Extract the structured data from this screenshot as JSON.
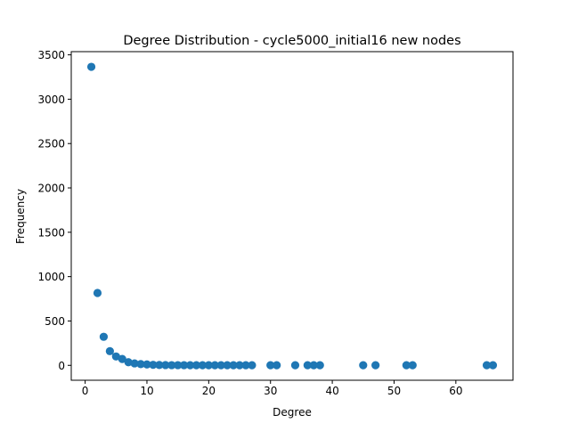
{
  "chart_data": {
    "type": "scatter",
    "title": "Degree Distribution - cycle5000_initial16 new nodes",
    "xlabel": "Degree",
    "ylabel": "Frequency",
    "xlim": [
      -2.25,
      69.25
    ],
    "ylim": [
      -168,
      3536
    ],
    "xticks": [
      0,
      10,
      20,
      30,
      40,
      50,
      60
    ],
    "xtick_labels": [
      "0",
      "10",
      "20",
      "30",
      "40",
      "50",
      "60"
    ],
    "yticks": [
      0,
      500,
      1000,
      1500,
      2000,
      2500,
      3000,
      3500
    ],
    "ytick_labels": [
      "0",
      "500",
      "1000",
      "1500",
      "2000",
      "2500",
      "3000",
      "3500"
    ],
    "grid": false,
    "marker_color": "#1f77b4",
    "points": [
      {
        "x": 1,
        "y": 3365
      },
      {
        "x": 2,
        "y": 816
      },
      {
        "x": 3,
        "y": 322
      },
      {
        "x": 4,
        "y": 160
      },
      {
        "x": 5,
        "y": 100
      },
      {
        "x": 6,
        "y": 72
      },
      {
        "x": 7,
        "y": 35
      },
      {
        "x": 8,
        "y": 22
      },
      {
        "x": 9,
        "y": 14
      },
      {
        "x": 10,
        "y": 10
      },
      {
        "x": 11,
        "y": 6
      },
      {
        "x": 12,
        "y": 4
      },
      {
        "x": 13,
        "y": 3
      },
      {
        "x": 14,
        "y": 2
      },
      {
        "x": 15,
        "y": 2
      },
      {
        "x": 16,
        "y": 2
      },
      {
        "x": 17,
        "y": 1
      },
      {
        "x": 18,
        "y": 1
      },
      {
        "x": 19,
        "y": 1
      },
      {
        "x": 20,
        "y": 1
      },
      {
        "x": 21,
        "y": 1
      },
      {
        "x": 22,
        "y": 1
      },
      {
        "x": 23,
        "y": 1
      },
      {
        "x": 24,
        "y": 1
      },
      {
        "x": 25,
        "y": 1
      },
      {
        "x": 26,
        "y": 1
      },
      {
        "x": 27,
        "y": 1
      },
      {
        "x": 30,
        "y": 1
      },
      {
        "x": 31,
        "y": 1
      },
      {
        "x": 34,
        "y": 1
      },
      {
        "x": 36,
        "y": 1
      },
      {
        "x": 37,
        "y": 1
      },
      {
        "x": 38,
        "y": 1
      },
      {
        "x": 45,
        "y": 1
      },
      {
        "x": 47,
        "y": 1
      },
      {
        "x": 52,
        "y": 1
      },
      {
        "x": 53,
        "y": 1
      },
      {
        "x": 65,
        "y": 1
      },
      {
        "x": 66,
        "y": 1
      }
    ]
  }
}
